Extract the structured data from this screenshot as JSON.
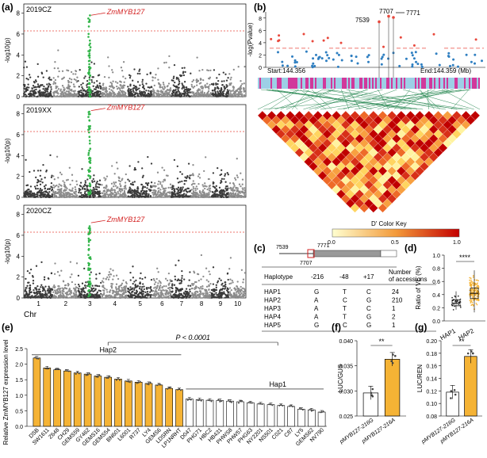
{
  "figure": {
    "panel_labels": [
      "(a)",
      "(b)",
      "(c)",
      "(d)",
      "(e)",
      "(f)",
      "(g)"
    ]
  },
  "colors": {
    "manhattan_dark": "#3a3a3a",
    "manhattan_light": "#8c8c8c",
    "highlight_green": "#33b54a",
    "threshold_red": "#e8483c",
    "annotation_red": "#d32020",
    "bar_orange": "#f5b335",
    "scatter_blue": "#2f7fc1",
    "ld_light": "#fff7a8",
    "ld_mid": "#f08030",
    "ld_dark": "#c00000",
    "track_pink": "#d1389b",
    "track_blue": "#9dcfe6",
    "link_green": "#2e8b57"
  },
  "chart_data": [
    {
      "id": "a",
      "type": "scatter",
      "subtype": "manhattan",
      "xlabel": "Chr",
      "ylabel": "-log10(p)",
      "chromosomes": [
        "1",
        "2",
        "3",
        "4",
        "5",
        "6",
        "7",
        "8",
        "9",
        "10"
      ],
      "ylim": [
        0,
        8.5
      ],
      "yticks": [
        0,
        2,
        4,
        6,
        8
      ],
      "panels": [
        {
          "name": "2019CZ",
          "threshold": 6.3,
          "peak": 7.8,
          "annotation": "ZmMYB127",
          "annotation_italic": true
        },
        {
          "name": "2019XX",
          "threshold": 6.3,
          "peak": 8.3,
          "annotation": "ZmMYB127",
          "annotation_italic": true
        },
        {
          "name": "2020CZ",
          "threshold": 6.3,
          "peak": 7.2,
          "annotation": "ZmMYB127",
          "annotation_italic": true
        }
      ]
    },
    {
      "id": "b",
      "type": "scatter",
      "subtype": "regional association + LD heatmap",
      "ylabel": "-log(Pvalue)",
      "yticks": [
        0,
        2,
        4,
        6,
        8
      ],
      "ylim": [
        0,
        9
      ],
      "start_label": "Start:144.356",
      "end_label": "End:144.359 (Mb)",
      "highlighted_snps": [
        "7539",
        "7707",
        "7771"
      ],
      "color_key_title": "D' Color Key",
      "color_key_ticks": [
        "0.0",
        "0.5",
        "1.0"
      ]
    },
    {
      "id": "c",
      "type": "table",
      "gene_snps": [
        "7539",
        "7771",
        "7707"
      ],
      "headers": [
        "Haplotype",
        "-216",
        "-48",
        "+17",
        "Number of accessions"
      ],
      "rows": [
        [
          "HAP1",
          "G",
          "T",
          "C",
          "24"
        ],
        [
          "HAP2",
          "A",
          "C",
          "G",
          "210"
        ],
        [
          "HAP3",
          "A",
          "T",
          "C",
          "1"
        ],
        [
          "HAP4",
          "A",
          "T",
          "G",
          "2"
        ],
        [
          "HAP5",
          "G",
          "C",
          "G",
          "1"
        ]
      ]
    },
    {
      "id": "d",
      "type": "box",
      "ylabel": "Ratio of VE (%)",
      "ylim": [
        0,
        1.0
      ],
      "yticks": [
        "0.0",
        "0.2",
        "0.4",
        "0.6",
        "0.8",
        "1.0"
      ],
      "categories": [
        "HAP1",
        "HAP2"
      ],
      "stats": [
        {
          "min": 0.17,
          "q1": 0.23,
          "median": 0.27,
          "q3": 0.32,
          "max": 0.45
        },
        {
          "min": 0.13,
          "q1": 0.34,
          "median": 0.42,
          "q3": 0.5,
          "max": 0.77
        }
      ],
      "significance": "****"
    },
    {
      "id": "e",
      "type": "bar",
      "ylabel": "Relative ZmMYB127 expression level",
      "ylim": [
        0,
        2.5
      ],
      "yticks": [
        "0.0",
        "0.5",
        "1.0",
        "1.5",
        "2.0",
        "2.5"
      ],
      "group_labels": [
        "Hap2",
        "Hap1"
      ],
      "pvalue_label": "P < 0.0001",
      "categories": [
        "DSB",
        "SW1611",
        "Z648",
        "CH29",
        "GEMS59",
        "GY462",
        "GEMS16",
        "GEMS54",
        "BN601",
        "L6001",
        "R737",
        "LY4",
        "GEMS6",
        "LDSRN",
        "LP1NRHT",
        "D047",
        "PHG71",
        "HBC2",
        "HB431",
        "PHWS8",
        "PHW57",
        "PHG63",
        "NY2201",
        "NS501",
        "C021",
        "C87",
        "LY5",
        "GEMS62",
        "NV790"
      ],
      "values": [
        2.2,
        1.88,
        1.82,
        1.78,
        1.72,
        1.68,
        1.62,
        1.58,
        1.52,
        1.46,
        1.42,
        1.38,
        1.33,
        1.22,
        1.18,
        0.88,
        0.86,
        0.84,
        0.83,
        0.81,
        0.79,
        0.76,
        0.72,
        0.7,
        0.67,
        0.64,
        0.55,
        0.53,
        0.46
      ],
      "hap2_count": 15
    },
    {
      "id": "f",
      "type": "bar",
      "ylabel": "LUC/GUS",
      "ylim": [
        0.025,
        0.04
      ],
      "yticks": [
        "0.025",
        "0.030",
        "0.035",
        "0.040"
      ],
      "categories": [
        "pMYB127-216G",
        "pMYB127-216A"
      ],
      "values": [
        0.0296,
        0.0363
      ],
      "significance": "**"
    },
    {
      "id": "g",
      "type": "bar",
      "ylabel": "LUC/REN",
      "ylim": [
        0.08,
        0.2
      ],
      "yticks": [
        "0.08",
        "0.10",
        "0.12",
        "0.14",
        "0.16",
        "0.18",
        "0.20"
      ],
      "categories": [
        "pMYB127-216G",
        "pMYB127-216A"
      ],
      "values": [
        0.118,
        0.175
      ],
      "significance": "**"
    }
  ]
}
